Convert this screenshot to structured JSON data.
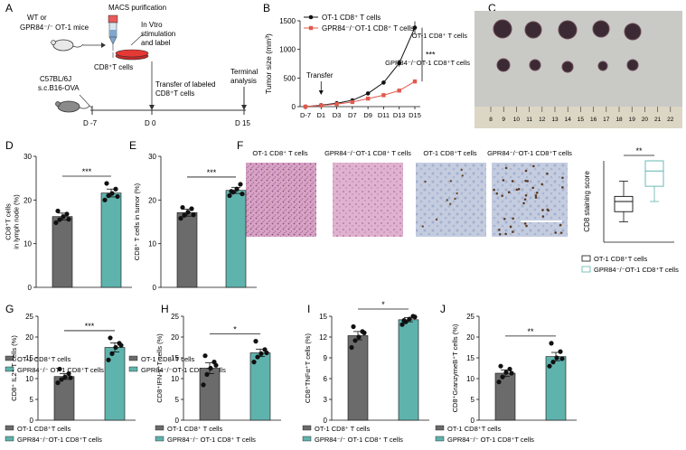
{
  "colors": {
    "gray": "#6b6b6b",
    "teal": "#5fb3ad",
    "red": "#e05a4f",
    "black": "#111111",
    "he_pink": "#cf8fb5",
    "ihc_blue": "#b8c3dc"
  },
  "panels": {
    "A": "A",
    "B": "B",
    "C": "C",
    "D": "D",
    "E": "E",
    "F": "F",
    "G": "G",
    "H": "H",
    "I": "I",
    "J": "J"
  },
  "schematic": {
    "mice_label_1": "WT  or",
    "mice_label_2": "GPR84⁻/⁻ OT-1 mice",
    "macs": "MACS purification",
    "cd8": "CD8⁺T cells",
    "invitro_1": "In Vtro",
    "invitro_2": "stimulation",
    "invitro_3": "and label",
    "host_1": "C57BL/6J",
    "host_2": "s.c.B16-OVA",
    "transfer_1": "Transfer of labeled",
    "transfer_2": "CD8⁺T cells",
    "terminal_1": "Terminal",
    "terminal_2": "analysis",
    "ticks": [
      "D -7",
      "D 0",
      "D 15"
    ]
  },
  "panel_c": {
    "label_wt": "OT-1 CD8⁺ T cells",
    "label_ko": "GPR84⁻/⁻OT-1 CD8⁺T cells",
    "ruler": [
      "8",
      "9",
      "10",
      "11",
      "12",
      "13",
      "14",
      "15",
      "16",
      "17",
      "18",
      "19",
      "20",
      "21",
      "22"
    ]
  },
  "panel_f": {
    "image_labels": [
      "OT-1 CD8⁺ T cells",
      "GPR84⁻/⁻OT-1 CD8⁺ T cells",
      "OT-1 CD8⁺T cells",
      "GPR84⁻/⁻OT-1 CD8⁺T cells"
    ],
    "sig": "**",
    "legend": [
      "OT-1 CD8⁺T cells",
      "GPR84⁻/⁻OT-1 CD8⁺T cells"
    ]
  },
  "chart_data": [
    {
      "id": "B",
      "type": "line",
      "xlabel": "",
      "ylabel": "Tumor size (mm³)",
      "categories": [
        "D-7",
        "D1",
        "D3",
        "D7",
        "D9",
        "D11",
        "D13",
        "D15"
      ],
      "ylim": [
        0,
        1500
      ],
      "yticks": [
        0,
        500,
        1000,
        1500
      ],
      "series": [
        {
          "name": "OT-1 CD8⁺ T cells",
          "values": [
            0,
            25,
            60,
            110,
            230,
            420,
            760,
            1380
          ]
        },
        {
          "name": "GPR84⁻/⁻OT-1 CD8⁺ T cells",
          "values": [
            0,
            20,
            45,
            80,
            140,
            200,
            280,
            440
          ]
        }
      ],
      "annotation": "Transfer",
      "sig": "***"
    },
    {
      "id": "F_box",
      "type": "box",
      "ylabel": "CD8 staining score",
      "ylim": [
        0,
        4
      ],
      "boxes": [
        {
          "name": "OT-1 CD8⁺T cells",
          "min": 1,
          "q1": 1.5,
          "median": 2,
          "q3": 2.25,
          "max": 3
        },
        {
          "name": "GPR84⁻/⁻OT-1 CD8⁺T cells",
          "min": 2,
          "q1": 2.75,
          "median": 3.5,
          "q3": 4,
          "max": 4
        }
      ]
    },
    {
      "id": "D",
      "type": "bar",
      "ylabel": "CD8⁺T cells\nin lymph node (%)",
      "ylim": [
        0,
        30
      ],
      "yticks": [
        0,
        10,
        20,
        30
      ],
      "sig": "***",
      "bars": [
        {
          "name": "OT-1 CD8⁺T cells",
          "mean": 16.2,
          "sem": 0.8,
          "points": [
            14.8,
            15.5,
            16.2,
            16.8,
            17.5,
            15.6
          ]
        },
        {
          "name": "GPR84⁻/⁻ OT-1 CD8⁺T cells",
          "mean": 21.6,
          "sem": 0.9,
          "points": [
            20.0,
            21.0,
            21.5,
            22.5,
            23.8,
            20.8
          ]
        }
      ],
      "legend": [
        "OT-1 CD8⁺T cells",
        "GPR84⁻/⁻ OT-1 CD8⁺T cells"
      ]
    },
    {
      "id": "E",
      "type": "bar",
      "ylabel": "CD8⁺ T cells in tumor (%)",
      "ylim": [
        0,
        30
      ],
      "yticks": [
        0,
        10,
        20,
        30
      ],
      "sig": "***",
      "bars": [
        {
          "name": "OT-1 CD8⁺T cells",
          "mean": 17.1,
          "sem": 0.8,
          "points": [
            15.8,
            16.5,
            17.2,
            18.0,
            18.3,
            16.6
          ]
        },
        {
          "name": "GPR84⁻/⁻OT-1 CD8⁺T cells",
          "mean": 22.2,
          "sem": 0.7,
          "points": [
            21.0,
            21.8,
            22.5,
            23.6,
            22.0,
            21.4
          ]
        }
      ],
      "legend": [
        "OT-1 CD8⁺T cells",
        "GPR84⁻/⁻OT-1 CD8⁺T cells"
      ]
    },
    {
      "id": "G",
      "type": "bar",
      "ylabel": "CD8⁺ IL2⁺ T cells (%)",
      "ylim": [
        0,
        25
      ],
      "yticks": [
        0,
        5,
        10,
        15,
        20,
        25
      ],
      "sig": "***",
      "bars": [
        {
          "name": "OT-1 CD8⁺T cells",
          "mean": 10.5,
          "sem": 0.7,
          "points": [
            9.0,
            9.8,
            10.4,
            11.2,
            12.3,
            10.2
          ]
        },
        {
          "name": "GPR84⁻/⁻OT-1 CD8⁺T cells",
          "mean": 17.5,
          "sem": 1.1,
          "points": [
            14.5,
            16.0,
            17.5,
            18.5,
            19.8,
            18.0
          ]
        }
      ],
      "legend": [
        "OT-1 CD8⁺T cells",
        "GPR84⁻/⁻OT-1 CD8⁺T cells"
      ]
    },
    {
      "id": "H",
      "type": "bar",
      "ylabel": "CD8⁺IFN-γ⁺T cells (%)",
      "ylim": [
        0,
        25
      ],
      "yticks": [
        0,
        5,
        10,
        15,
        20,
        25
      ],
      "sig": "*",
      "bars": [
        {
          "name": "OT-1 CD8⁺ T cells",
          "mean": 12.5,
          "sem": 1.3,
          "points": [
            8.5,
            11.0,
            12.5,
            14.0,
            15.5,
            13.2
          ]
        },
        {
          "name": "GPR84⁻/⁻ OT-1 CD8⁺ T cells",
          "mean": 16.2,
          "sem": 0.9,
          "points": [
            14.0,
            15.2,
            16.0,
            17.0,
            19.0,
            16.2
          ]
        }
      ],
      "legend": [
        "OT-1 CD8⁺ T cells",
        "GPR84⁻/⁻ OT-1 CD8⁺ T cells"
      ]
    },
    {
      "id": "I",
      "type": "bar",
      "ylabel": "CD8⁺TNFα⁺T cells (%)",
      "ylim": [
        0,
        15
      ],
      "yticks": [
        0,
        3,
        6,
        9,
        12,
        15
      ],
      "sig": "*",
      "bars": [
        {
          "name": "OT-1 CD8⁺ T cells",
          "mean": 12.2,
          "sem": 0.6,
          "points": [
            10.5,
            11.5,
            12.0,
            12.8,
            13.5,
            12.6
          ]
        },
        {
          "name": "GPR84⁻/⁻ OT-1 CD8⁺ T cells",
          "mean": 14.5,
          "sem": 0.3,
          "points": [
            13.8,
            14.2,
            14.6,
            15.0,
            14.4,
            14.9
          ]
        }
      ],
      "legend": [
        "OT-1 CD8⁺ T cells",
        "GPR84⁻/⁻ OT-1 CD8⁺ T cells"
      ]
    },
    {
      "id": "J",
      "type": "bar",
      "ylabel": "CD8⁺GranzymeB⁺T cells (%)",
      "ylim": [
        0,
        25
      ],
      "yticks": [
        0,
        5,
        10,
        15,
        20,
        25
      ],
      "sig": "**",
      "bars": [
        {
          "name": "OT-1 CD8⁺T cells",
          "mean": 11.3,
          "sem": 0.8,
          "points": [
            9.2,
            10.4,
            11.5,
            12.3,
            13.0,
            11.3
          ]
        },
        {
          "name": "GPR84⁻/⁻ OT-1 CD8⁺T cells",
          "mean": 15.3,
          "sem": 1.0,
          "points": [
            13.0,
            14.0,
            15.0,
            16.5,
            18.5,
            14.8
          ]
        }
      ],
      "legend": [
        "OT-1 CD8⁺T cells",
        "GPR84⁻/⁻ OT-1 CD8⁺T cells"
      ]
    }
  ]
}
